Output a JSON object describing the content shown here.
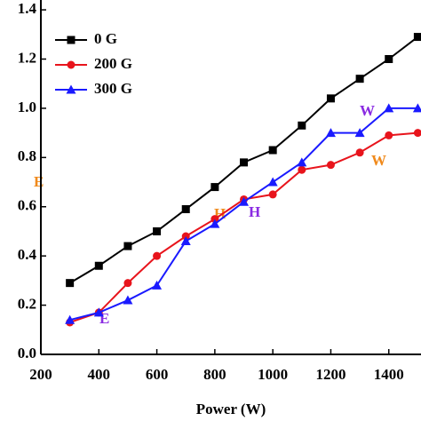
{
  "chart_data": {
    "type": "line",
    "x_label": "Power (W)",
    "x": [
      300,
      400,
      500,
      600,
      700,
      800,
      900,
      1000,
      1100,
      1200,
      1300,
      1400,
      1500
    ],
    "series": [
      {
        "name": "0 G",
        "color": "#000000",
        "marker": "square",
        "values": [
          0.29,
          0.36,
          0.44,
          0.5,
          0.59,
          0.68,
          0.78,
          0.83,
          0.93,
          1.04,
          1.12,
          1.2,
          1.29
        ]
      },
      {
        "name": "200 G",
        "color": "#e8141c",
        "marker": "circle",
        "values": [
          0.13,
          0.17,
          0.29,
          0.4,
          0.48,
          0.55,
          0.63,
          0.65,
          0.75,
          0.77,
          0.82,
          0.89,
          0.9
        ]
      },
      {
        "name": "300 G",
        "color": "#1a1aff",
        "marker": "triangle",
        "values": [
          0.14,
          0.17,
          0.22,
          0.28,
          0.46,
          0.53,
          0.62,
          0.7,
          0.78,
          0.9,
          0.9,
          1.0,
          1.0
        ]
      }
    ],
    "xlim": [
      200,
      1500
    ],
    "xticks": [
      200,
      400,
      600,
      800,
      1000,
      1200,
      1400
    ],
    "ylim": [
      0,
      1.44
    ],
    "yticks": [
      {
        "value": 0,
        "label": "0.0"
      },
      0.2,
      0.4,
      0.6,
      0.8,
      {
        "value": 1,
        "label": "1.0"
      },
      1.2,
      1.4
    ],
    "annotations": [
      {
        "text": "E",
        "color": "#f08a1c"
      },
      {
        "text": "E",
        "color": "#8a2be2"
      },
      {
        "text": "H",
        "color": "#f08a1c"
      },
      {
        "text": "H",
        "color": "#8a2be2"
      },
      {
        "text": "W",
        "color": "#8a2be2"
      },
      {
        "text": "W",
        "color": "#f08a1c"
      }
    ]
  }
}
